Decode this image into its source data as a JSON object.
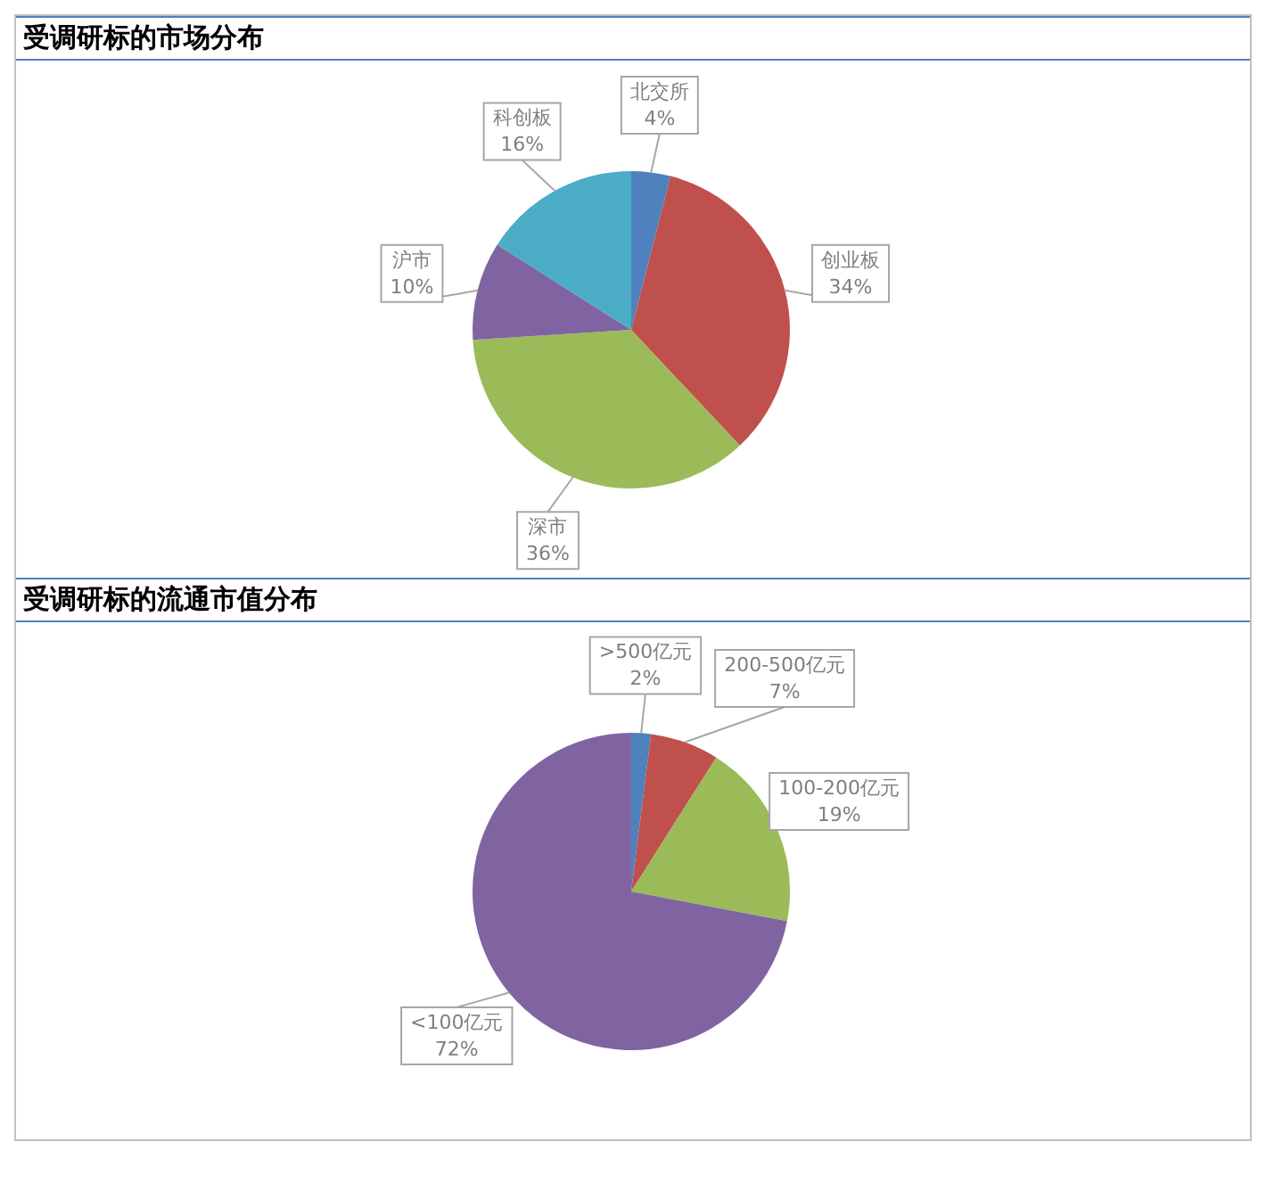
{
  "chart_data": [
    {
      "type": "pie",
      "title": "受调研标的市场分布",
      "categories": [
        "北交所",
        "创业板",
        "深市",
        "沪市",
        "科创板"
      ],
      "values": [
        4,
        34,
        36,
        10,
        16
      ],
      "colors": [
        "#4f81bd",
        "#c0504d",
        "#9bbb59",
        "#8064a2",
        "#4bacc6"
      ],
      "value_labels": [
        "4%",
        "34%",
        "36%",
        "10%",
        "16%"
      ],
      "legend": false
    },
    {
      "type": "pie",
      "title": "受调研标的流通市值分布",
      "categories": [
        ">500亿元",
        "200-500亿元",
        "100-200亿元",
        "<100亿元"
      ],
      "values": [
        2,
        7,
        19,
        72
      ],
      "colors": [
        "#4f81bd",
        "#c0504d",
        "#9bbb59",
        "#8064a2"
      ],
      "value_labels": [
        "2%",
        "7%",
        "19%",
        "72%"
      ],
      "legend": false
    }
  ]
}
